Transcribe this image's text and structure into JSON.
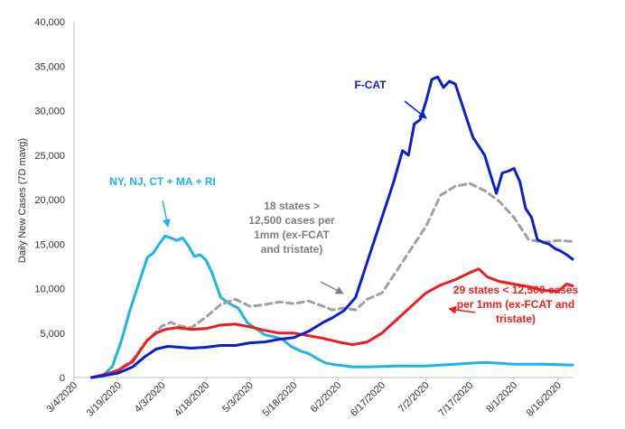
{
  "chart_data": {
    "type": "line",
    "title": "",
    "xlabel": "",
    "ylabel": "Daily New Cases (7D mavg)",
    "ylim": [
      0,
      40000
    ],
    "yticks": [
      "0",
      "5,000",
      "10,000",
      "15,000",
      "20,000",
      "25,000",
      "30,000",
      "35,000",
      "40,000"
    ],
    "xticks": [
      "3/4/2020",
      "3/19/2020",
      "4/3/2020",
      "4/18/2020",
      "5/3/2020",
      "5/18/2020",
      "6/2/2020",
      "6/17/2020",
      "7/2/2020",
      "7/17/2020",
      "8/1/2020",
      "8/16/2020"
    ],
    "xlim": [
      0,
      170
    ],
    "grid": false,
    "series": [
      {
        "key": "fcat",
        "color": "#0a1fd0",
        "dash": false,
        "x": [
          6,
          10,
          15,
          20,
          24,
          28,
          32,
          36,
          40,
          45,
          50,
          55,
          60,
          65,
          70,
          75,
          80,
          85,
          88,
          92,
          96,
          100,
          103,
          106,
          109,
          112,
          114,
          116,
          118,
          120,
          122,
          124,
          126,
          128,
          130,
          132,
          134,
          136,
          138,
          140,
          142,
          144,
          146,
          148,
          150,
          152,
          154,
          156,
          158,
          160,
          162,
          164,
          166,
          168,
          170
        ],
        "values": [
          0,
          200,
          500,
          1200,
          2300,
          3200,
          3500,
          3400,
          3300,
          3400,
          3600,
          3600,
          3900,
          4000,
          4300,
          4500,
          5200,
          6200,
          6700,
          7500,
          9000,
          13000,
          16000,
          19000,
          22000,
          25500,
          25000,
          28500,
          29000,
          31000,
          33500,
          33800,
          32600,
          33300,
          33000,
          31000,
          29000,
          27000,
          26000,
          25000,
          22800,
          20700,
          23000,
          23200,
          23500,
          22000,
          19000,
          18000,
          15500,
          15200,
          15000,
          14500,
          14200,
          13800,
          13300
        ]
      },
      {
        "key": "tristate",
        "color": "#1fb3e8",
        "dash": false,
        "x": [
          6,
          10,
          13,
          16,
          19,
          22,
          25,
          27,
          29,
          31,
          33,
          35,
          37,
          39,
          41,
          43,
          45,
          47,
          50,
          53,
          56,
          59,
          62,
          65,
          68,
          71,
          74,
          77,
          80,
          83,
          86,
          90,
          95,
          100,
          110,
          120,
          130,
          140,
          150,
          160,
          170
        ],
        "values": [
          0,
          300,
          1200,
          4000,
          7500,
          10500,
          13500,
          14000,
          15000,
          15900,
          15700,
          15400,
          15700,
          14800,
          13600,
          13800,
          13200,
          11800,
          9000,
          8300,
          7800,
          6200,
          5500,
          4800,
          4600,
          4300,
          3500,
          3000,
          2700,
          2100,
          1600,
          1400,
          1200,
          1200,
          1300,
          1300,
          1500,
          1700,
          1500,
          1500,
          1400
        ]
      },
      {
        "key": "over",
        "color": "#a0a0a0",
        "dash": true,
        "x": [
          6,
          10,
          15,
          20,
          25,
          30,
          33,
          36,
          40,
          45,
          50,
          55,
          60,
          65,
          70,
          75,
          80,
          85,
          88,
          92,
          96,
          100,
          105,
          110,
          115,
          120,
          125,
          130,
          135,
          140,
          145,
          150,
          155,
          160,
          165,
          170
        ],
        "values": [
          0,
          300,
          800,
          2000,
          4200,
          5800,
          6200,
          5800,
          5600,
          6800,
          8200,
          8800,
          8000,
          8200,
          8500,
          8300,
          8600,
          8000,
          7600,
          7800,
          7600,
          8800,
          9500,
          12000,
          14500,
          17000,
          20500,
          21500,
          21800,
          21000,
          19800,
          18000,
          15500,
          15200,
          15400,
          15300
        ]
      },
      {
        "key": "under",
        "color": "#ee1c1c",
        "dash": false,
        "x": [
          6,
          10,
          15,
          20,
          25,
          28,
          31,
          35,
          40,
          45,
          50,
          55,
          60,
          65,
          70,
          75,
          80,
          85,
          90,
          95,
          100,
          105,
          110,
          115,
          120,
          125,
          130,
          135,
          138,
          141,
          145,
          150,
          155,
          160,
          165,
          168,
          170
        ],
        "values": [
          0,
          300,
          800,
          1800,
          4200,
          5000,
          5400,
          5600,
          5400,
          5500,
          5900,
          6000,
          5700,
          5300,
          5000,
          5000,
          4700,
          4400,
          4000,
          3700,
          4000,
          5000,
          6500,
          8000,
          9500,
          10400,
          11000,
          11800,
          12200,
          11300,
          10800,
          10500,
          10200,
          9800,
          9700,
          10500,
          10300
        ]
      }
    ],
    "annotations": [
      {
        "key": "fcat",
        "lines": [
          "F-CAT"
        ],
        "color": "#0a1fd0"
      },
      {
        "key": "tristate",
        "lines": [
          "NY, NJ, CT + MA + RI"
        ],
        "color": "#1fb3e8"
      },
      {
        "key": "over",
        "lines": [
          "18 states >",
          "12,500 cases per",
          "1mm (ex-FCAT",
          "and tristate)"
        ],
        "color": "#7f7f7f"
      },
      {
        "key": "under",
        "lines": [
          "29 states < 12,500 cases",
          "per 1mm (ex-FCAT and",
          "tristate)"
        ],
        "color": "#ee1c1c"
      }
    ]
  }
}
